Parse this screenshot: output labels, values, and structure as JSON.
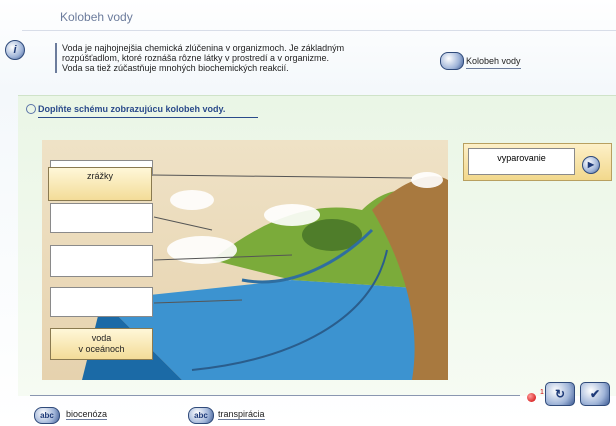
{
  "header": {
    "title": "Kolobeh vody"
  },
  "intro": {
    "lines": [
      "Voda je najhojnejšia chemická zlúčenina v organizmoch. Je základným",
      "rozpúšťadlom, ktoré roznáša rôzne látky v prostredí a v organizme.",
      "Voda sa tiež zúčastňuje mnohých biochemických reakcií."
    ]
  },
  "link": "Kolobeh vody",
  "task": "Doplňte schému zobrazujúcu kolobeh vody.",
  "labels": {
    "top": "zrážky",
    "bottom": [
      "voda",
      "v oceánoch"
    ]
  },
  "answer_card": "vyparovanie",
  "hint_count": 1,
  "footer": [
    "biocenóza",
    "transpirácia"
  ]
}
